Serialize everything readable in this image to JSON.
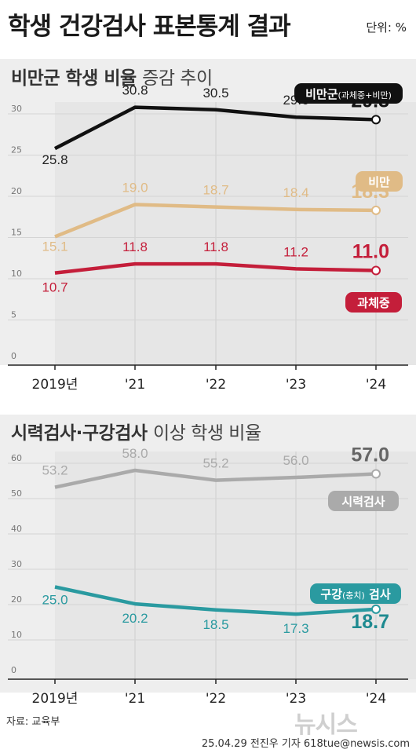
{
  "title": "학생 건강검사 표본통계 결과",
  "unit": "단위: %",
  "section1": {
    "title_bold": "비만군 학생 비율",
    "title_light": "증감 추이"
  },
  "section2": {
    "title_bold": "시력검사·구강검사",
    "title_light": "이상 학생 비율"
  },
  "source": "자료: 교육부",
  "byline": "25.04.29 전진우 기자 618tue@newsis.com",
  "logo": "뉴시스",
  "chart_data": [
    {
      "type": "line",
      "categories": [
        "2019년",
        "'21",
        "'22",
        "'23",
        "'24"
      ],
      "yticks": [
        0,
        5,
        10,
        15,
        20,
        25,
        30
      ],
      "ylim": [
        0,
        30
      ],
      "series": [
        {
          "name": "비만군(과체중+비만)",
          "color": "#111111",
          "values": [
            25.8,
            30.8,
            30.5,
            29.6,
            29.3
          ],
          "labels": [
            "25.8",
            "30.8",
            "30.5",
            "29.6",
            "29.3"
          ]
        },
        {
          "name": "비만",
          "color": "#e0bb86",
          "values": [
            15.1,
            19.0,
            18.7,
            18.4,
            18.3
          ],
          "labels": [
            "15.1",
            "19.0",
            "18.7",
            "18.4",
            "18.3"
          ]
        },
        {
          "name": "과체중",
          "color": "#c41e3a",
          "values": [
            10.7,
            11.8,
            11.8,
            11.2,
            11.0
          ],
          "labels": [
            "10.7",
            "11.8",
            "11.8",
            "11.2",
            "11.0"
          ]
        }
      ]
    },
    {
      "type": "line",
      "categories": [
        "2019년",
        "'21",
        "'22",
        "'23",
        "'24"
      ],
      "yticks": [
        0,
        10,
        20,
        30,
        40,
        50,
        60
      ],
      "ylim": [
        0,
        60
      ],
      "series": [
        {
          "name": "시력검사",
          "color": "#aaaaaa",
          "values": [
            53.2,
            58.0,
            55.2,
            56.0,
            57.0
          ],
          "labels": [
            "53.2",
            "58.0",
            "55.2",
            "56.0",
            "57.0"
          ]
        },
        {
          "name": "구강(충치) 검사",
          "color": "#2a9aa0",
          "values": [
            25.0,
            20.2,
            18.5,
            17.3,
            18.7
          ],
          "labels": [
            "25.0",
            "20.2",
            "18.5",
            "17.3",
            "18.7"
          ]
        }
      ]
    }
  ]
}
